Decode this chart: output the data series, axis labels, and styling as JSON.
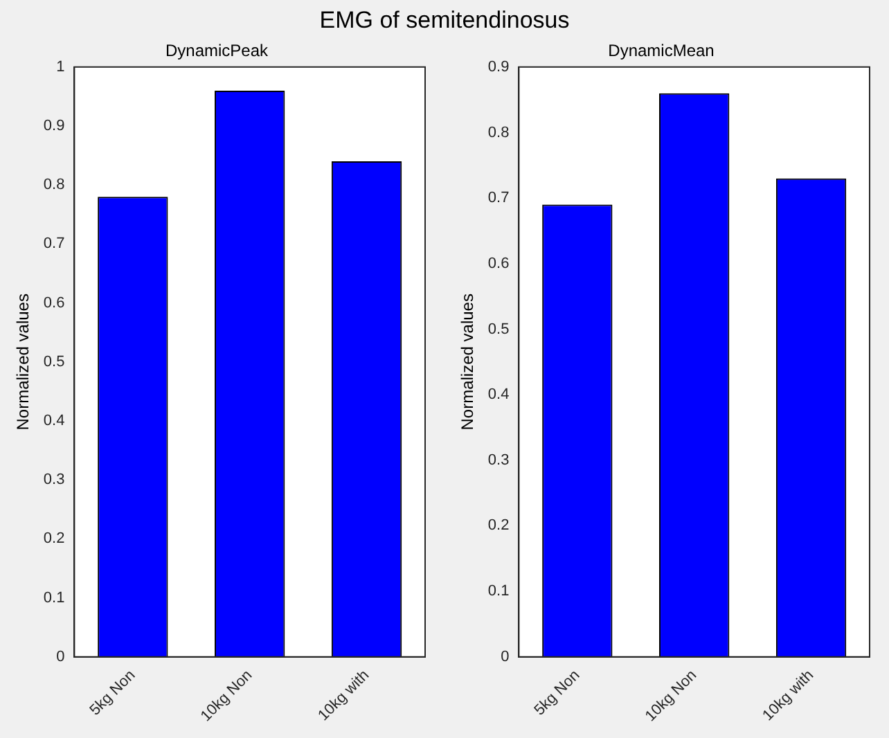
{
  "chart_data": [
    {
      "type": "bar",
      "title": "EMG of semitendinosus",
      "subtitle": "DynamicPeak",
      "ylabel": "Normalized values",
      "categories": [
        "5kg Non",
        "10kg Non",
        "10kg with"
      ],
      "values": [
        0.78,
        0.96,
        0.84
      ],
      "color": "#0000ff",
      "ylim": [
        0,
        1
      ],
      "yticks": [
        0,
        0.1,
        0.2,
        0.3,
        0.4,
        0.5,
        0.6,
        0.7,
        0.8,
        0.9,
        1
      ],
      "grid": false,
      "legend": false
    },
    {
      "type": "bar",
      "title": "DynamicMean",
      "ylabel": "Normalized values",
      "categories": [
        "5kg Non",
        "10kg Non",
        "10kg with"
      ],
      "values": [
        0.69,
        0.86,
        0.73
      ],
      "color": "#0000ff",
      "ylim": [
        0,
        0.9
      ],
      "yticks": [
        0,
        0.1,
        0.2,
        0.3,
        0.4,
        0.5,
        0.6,
        0.7,
        0.8,
        0.9
      ],
      "grid": false,
      "legend": false
    }
  ]
}
